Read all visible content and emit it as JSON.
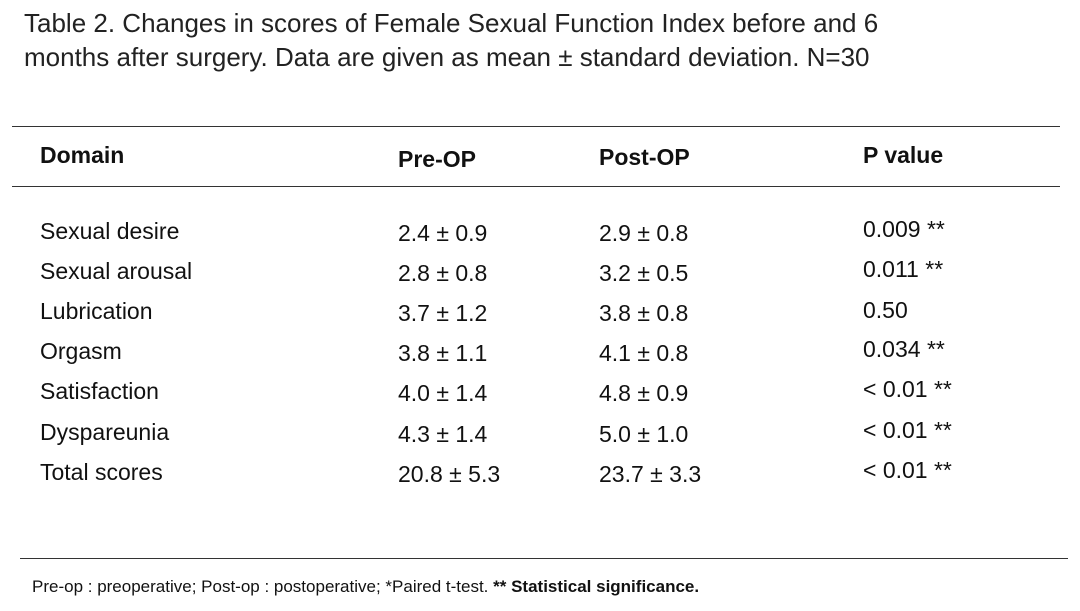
{
  "caption": {
    "line1": "Table 2. Changes in scores of Female Sexual Function Index before and 6",
    "line2": "months after surgery. Data are given as mean ± standard deviation. N=30"
  },
  "table": {
    "headers": [
      "Domain",
      "Pre-OP",
      "Post-OP",
      "P value"
    ],
    "rows": [
      [
        "Sexual desire",
        "2.4 ± 0.9",
        "2.9 ± 0.8",
        "0.009 **"
      ],
      [
        "Sexual arousal",
        "2.8 ± 0.8",
        "3.2 ± 0.5",
        "0.011 **"
      ],
      [
        "Lubrication",
        "3.7 ± 1.2",
        "3.8 ± 0.8",
        "0.50"
      ],
      [
        "Orgasm",
        "3.8 ± 1.1",
        "4.1 ± 0.8",
        "0.034 **"
      ],
      [
        "Satisfaction",
        "4.0 ± 1.4",
        "4.8 ± 0.9",
        "< 0.01 **"
      ],
      [
        "Dyspareunia",
        "4.3 ± 1.4",
        "5.0 ± 1.0",
        "< 0.01 **"
      ],
      [
        "Total scores",
        "20.8 ± 5.3",
        "23.7 ± 3.3",
        "< 0.01 **"
      ]
    ]
  },
  "footnote": {
    "text": "Pre-op : preoperative; Post-op : postoperative; *Paired t-test. ",
    "bold": "** Statistical significance."
  }
}
